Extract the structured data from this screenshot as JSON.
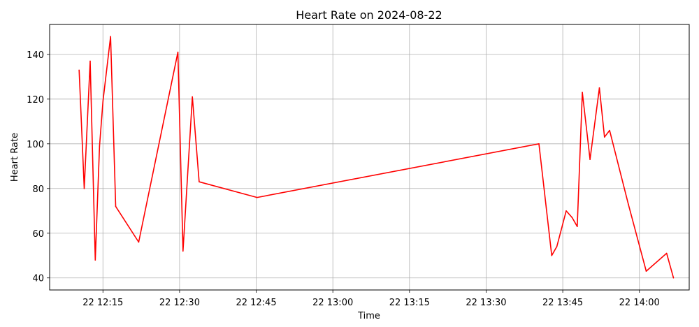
{
  "chart_data": {
    "type": "line",
    "title": "Heart Rate on 2024-08-22",
    "xlabel": "Time",
    "ylabel": "Heart Rate",
    "x_axis_type": "time",
    "xlim": [
      "2024-08-22T12:04:34",
      "2024-08-22T14:09:45"
    ],
    "ylim": [
      34.6,
      153.4
    ],
    "grid": true,
    "x_ticks": [
      {
        "value": "2024-08-22T12:15",
        "label": "22 12:15"
      },
      {
        "value": "2024-08-22T12:30",
        "label": "22 12:30"
      },
      {
        "value": "2024-08-22T12:45",
        "label": "22 12:45"
      },
      {
        "value": "2024-08-22T13:00",
        "label": "22 13:00"
      },
      {
        "value": "2024-08-22T13:15",
        "label": "22 13:15"
      },
      {
        "value": "2024-08-22T13:30",
        "label": "22 13:30"
      },
      {
        "value": "2024-08-22T13:45",
        "label": "22 13:45"
      },
      {
        "value": "2024-08-22T14:00",
        "label": "22 14:00"
      }
    ],
    "y_ticks": [
      40,
      60,
      80,
      100,
      120,
      140
    ],
    "series": [
      {
        "color": "#ff0000",
        "x": [
          "2024-08-22T12:10:20",
          "2024-08-22T12:11:20",
          "2024-08-22T12:12:30",
          "2024-08-22T12:13:30",
          "2024-08-22T12:14:20",
          "2024-08-22T12:15:00",
          "2024-08-22T12:16:30",
          "2024-08-22T12:17:30",
          "2024-08-22T12:22:00",
          "2024-08-22T12:29:40",
          "2024-08-22T12:30:40",
          "2024-08-22T12:32:30",
          "2024-08-22T12:33:50",
          "2024-08-22T12:45:10",
          "2024-08-22T13:40:20",
          "2024-08-22T13:42:50",
          "2024-08-22T13:43:50",
          "2024-08-22T13:45:40",
          "2024-08-22T13:46:50",
          "2024-08-22T13:47:50",
          "2024-08-22T13:48:50",
          "2024-08-22T13:50:20",
          "2024-08-22T13:52:10",
          "2024-08-22T13:53:10",
          "2024-08-22T13:54:10",
          "2024-08-22T13:57:50",
          "2024-08-22T14:01:20",
          "2024-08-22T14:05:20",
          "2024-08-22T14:06:40"
        ],
        "y": [
          133,
          80,
          137,
          48,
          99,
          119,
          148,
          72,
          56,
          141,
          52,
          121,
          83,
          76,
          100,
          50,
          54,
          70,
          67,
          63,
          123,
          93,
          125,
          103,
          106,
          73,
          43,
          51,
          40
        ]
      }
    ]
  }
}
